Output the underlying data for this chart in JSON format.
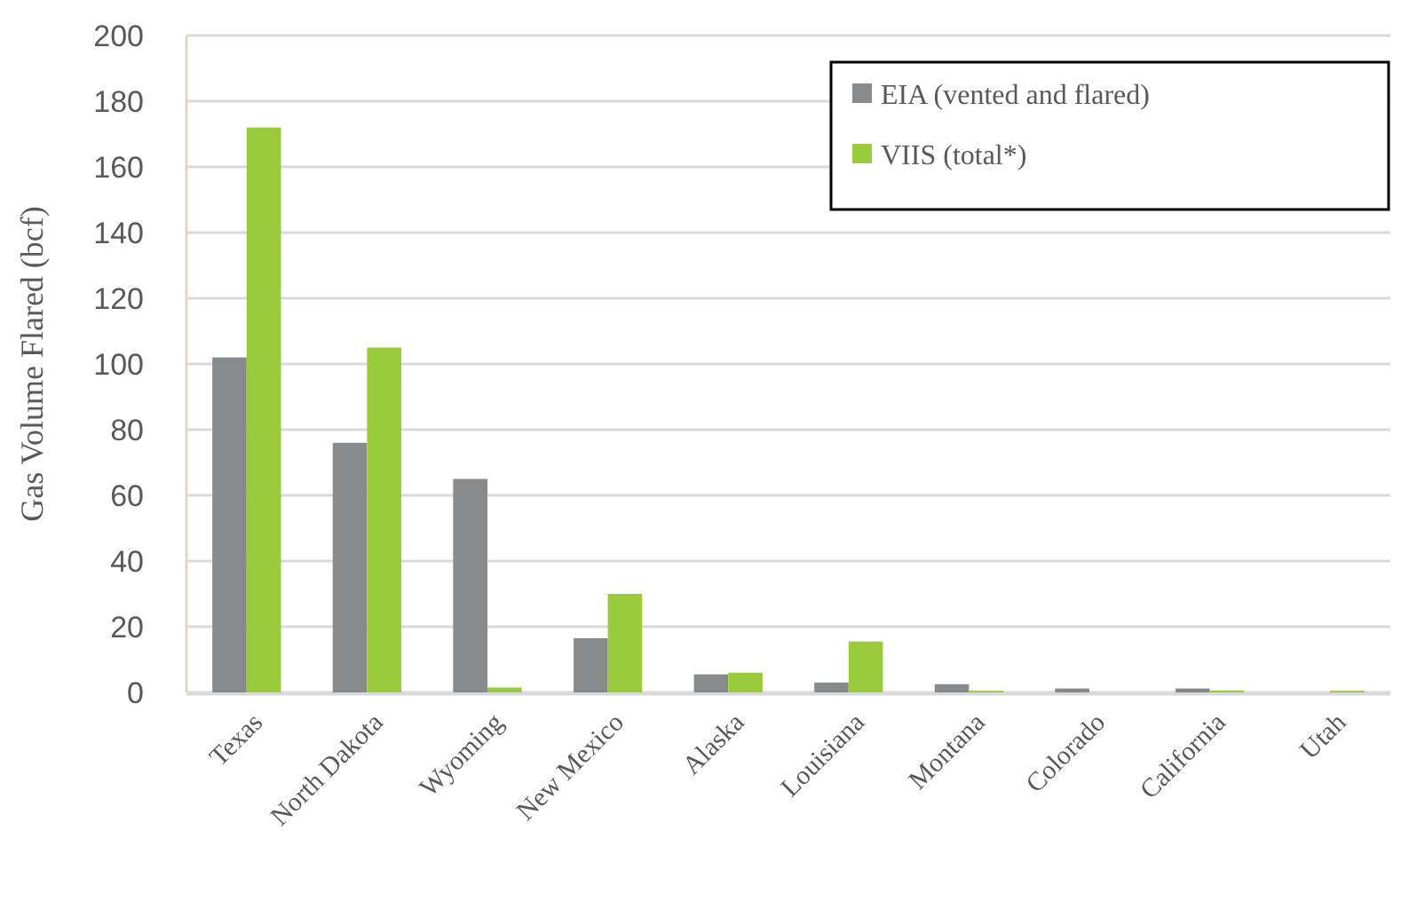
{
  "chart_data": {
    "type": "bar",
    "ylabel": "Gas Volume Flared (bcf)",
    "categories": [
      "Texas",
      "North Dakota",
      "Wyoming",
      "New Mexico",
      "Alaska",
      "Louisiana",
      "Montana",
      "Colorado",
      "California",
      "Utah"
    ],
    "series": [
      {
        "name": "EIA (vented and flared)",
        "color": "#898a8c",
        "values": [
          102,
          76,
          65,
          16.5,
          5.5,
          3,
          2.5,
          1.2,
          1.2,
          null
        ]
      },
      {
        "name": "VIIS (total*)",
        "color": "#9acb3c",
        "values": [
          172,
          105,
          1.5,
          30,
          6,
          15.5,
          0.5,
          null,
          0.6,
          0.5
        ]
      }
    ],
    "ylim": [
      0,
      200
    ],
    "yticks": [
      0,
      20,
      40,
      60,
      80,
      100,
      120,
      140,
      160,
      180,
      200
    ],
    "grid": "y",
    "legend": "top right"
  }
}
